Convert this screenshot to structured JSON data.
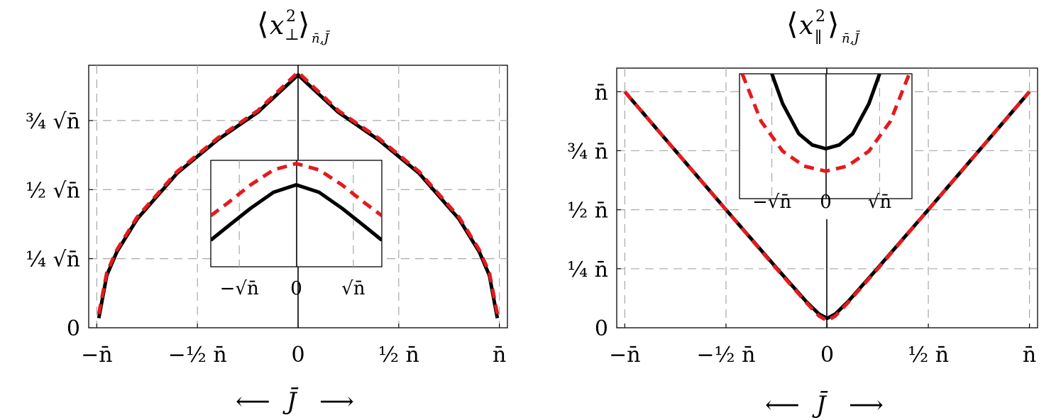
{
  "colors": {
    "exact": "#000000",
    "approx": "#e41a1c",
    "grid": "#a8a8a8"
  },
  "chart_data": [
    {
      "type": "line",
      "title_main": "x",
      "title_sup": "2",
      "title_sub": "⊥",
      "title_outer_sub": "n̄,J̄",
      "xlabel_left_arrow": "⟵",
      "xlabel_var": "J̄",
      "xlabel_right_arrow": "⟶",
      "x_ticks": [
        {
          "v": -1,
          "label": "−n̄"
        },
        {
          "v": -0.5,
          "label": "−½ n̄"
        },
        {
          "v": 0,
          "label": "0"
        },
        {
          "v": 0.5,
          "label": "½ n̄"
        },
        {
          "v": 1,
          "label": "n̄"
        }
      ],
      "y_ticks": [
        {
          "v": 0,
          "label": "0"
        },
        {
          "v": 0.25,
          "label": "¼ √n̄"
        },
        {
          "v": 0.5,
          "label": "½ √n̄"
        },
        {
          "v": 0.75,
          "label": "¾ √n̄"
        }
      ],
      "xlim": [
        -1.04,
        1.04
      ],
      "ylim": [
        0,
        0.95
      ],
      "grid": true,
      "series": [
        {
          "x": [
            -0.99,
            -0.95,
            -0.9,
            -0.8,
            -0.6,
            -0.4,
            -0.2,
            0,
            0.2,
            0.4,
            0.6,
            0.8,
            0.9,
            0.95,
            0.99
          ],
          "y": [
            0.035,
            0.19,
            0.275,
            0.393,
            0.56,
            0.68,
            0.78,
            0.915,
            0.78,
            0.68,
            0.56,
            0.393,
            0.275,
            0.19,
            0.035
          ],
          "style": "solid",
          "color": "#000000"
        },
        {
          "x": [
            -0.99,
            -0.95,
            -0.9,
            -0.8,
            -0.6,
            -0.4,
            -0.2,
            0,
            0.2,
            0.4,
            0.6,
            0.8,
            0.9,
            0.95,
            0.99
          ],
          "y": [
            0.05,
            0.2,
            0.282,
            0.4,
            0.566,
            0.686,
            0.786,
            0.925,
            0.786,
            0.686,
            0.566,
            0.4,
            0.282,
            0.2,
            0.05
          ],
          "style": "dashed",
          "color": "#e41a1c"
        }
      ],
      "inset": {
        "x_ticks": [
          {
            "v": -1,
            "label": "−√n̄"
          },
          {
            "v": 0,
            "label": "0"
          },
          {
            "v": 1,
            "label": "√n̄"
          }
        ],
        "xlim": [
          -1.5,
          1.5
        ],
        "ylim": [
          0,
          1
        ],
        "series": [
          {
            "x": [
              -1.5,
              -1.2,
              -0.8,
              -0.4,
              0,
              0.4,
              0.8,
              1.2,
              1.5
            ],
            "y": [
              0.25,
              0.38,
              0.55,
              0.7,
              0.77,
              0.7,
              0.55,
              0.38,
              0.25
            ],
            "style": "solid",
            "color": "#000000"
          },
          {
            "x": [
              -1.5,
              -1.2,
              -0.8,
              -0.4,
              0,
              0.4,
              0.8,
              1.2,
              1.5
            ],
            "y": [
              0.48,
              0.6,
              0.77,
              0.91,
              0.97,
              0.91,
              0.77,
              0.6,
              0.48
            ],
            "style": "dashed",
            "color": "#e41a1c"
          }
        ]
      }
    },
    {
      "type": "line",
      "title_main": "x",
      "title_sup": "2",
      "title_sub": "∥",
      "title_outer_sub": "n̄,J̄",
      "xlabel_left_arrow": "⟵",
      "xlabel_var": "J̄",
      "xlabel_right_arrow": "⟶",
      "x_ticks": [
        {
          "v": -1,
          "label": "−n̄"
        },
        {
          "v": -0.5,
          "label": "−½ n̄"
        },
        {
          "v": 0,
          "label": "0"
        },
        {
          "v": 0.5,
          "label": "½ n̄"
        },
        {
          "v": 1,
          "label": "n̄"
        }
      ],
      "y_ticks": [
        {
          "v": 0,
          "label": "0"
        },
        {
          "v": 0.25,
          "label": "¼ n̄"
        },
        {
          "v": 0.5,
          "label": "½ n̄"
        },
        {
          "v": 0.75,
          "label": "¾ n̄"
        },
        {
          "v": 1,
          "label": "n̄"
        }
      ],
      "xlim": [
        -1.04,
        1.04
      ],
      "ylim": [
        0,
        1.1
      ],
      "grid": true,
      "series": [
        {
          "x": [
            -1,
            -0.75,
            -0.5,
            -0.25,
            -0.1,
            -0.04,
            0,
            0.04,
            0.1,
            0.25,
            0.5,
            0.75,
            1
          ],
          "y": [
            1,
            0.75,
            0.5,
            0.253,
            0.108,
            0.058,
            0.04,
            0.058,
            0.108,
            0.253,
            0.5,
            0.75,
            1
          ],
          "style": "solid",
          "color": "#000000"
        },
        {
          "x": [
            -1,
            -0.75,
            -0.5,
            -0.25,
            -0.1,
            -0.04,
            0,
            0.04,
            0.1,
            0.25,
            0.5,
            0.75,
            1
          ],
          "y": [
            1,
            0.75,
            0.5,
            0.25,
            0.104,
            0.05,
            0.03,
            0.05,
            0.104,
            0.25,
            0.5,
            0.75,
            1
          ],
          "style": "dashed",
          "color": "#e41a1c"
        }
      ],
      "inset": {
        "x_ticks": [
          {
            "v": -1,
            "label": "−√n̄"
          },
          {
            "v": 0,
            "label": "0"
          },
          {
            "v": 1,
            "label": "√n̄"
          }
        ],
        "xlim": [
          -1.6,
          1.6
        ],
        "ylim": [
          0,
          1
        ],
        "series": [
          {
            "x": [
              -1.0,
              -0.8,
              -0.5,
              -0.25,
              0,
              0.25,
              0.5,
              0.8,
              1.0
            ],
            "y": [
              1.0,
              0.76,
              0.52,
              0.43,
              0.4,
              0.43,
              0.52,
              0.76,
              1.0
            ],
            "style": "solid",
            "color": "#000000"
          },
          {
            "x": [
              -1.55,
              -1.2,
              -0.8,
              -0.4,
              0,
              0.4,
              0.8,
              1.2,
              1.55
            ],
            "y": [
              1.0,
              0.62,
              0.38,
              0.26,
              0.22,
              0.26,
              0.38,
              0.62,
              1.0
            ],
            "style": "dashed",
            "color": "#e41a1c"
          }
        ]
      }
    }
  ]
}
